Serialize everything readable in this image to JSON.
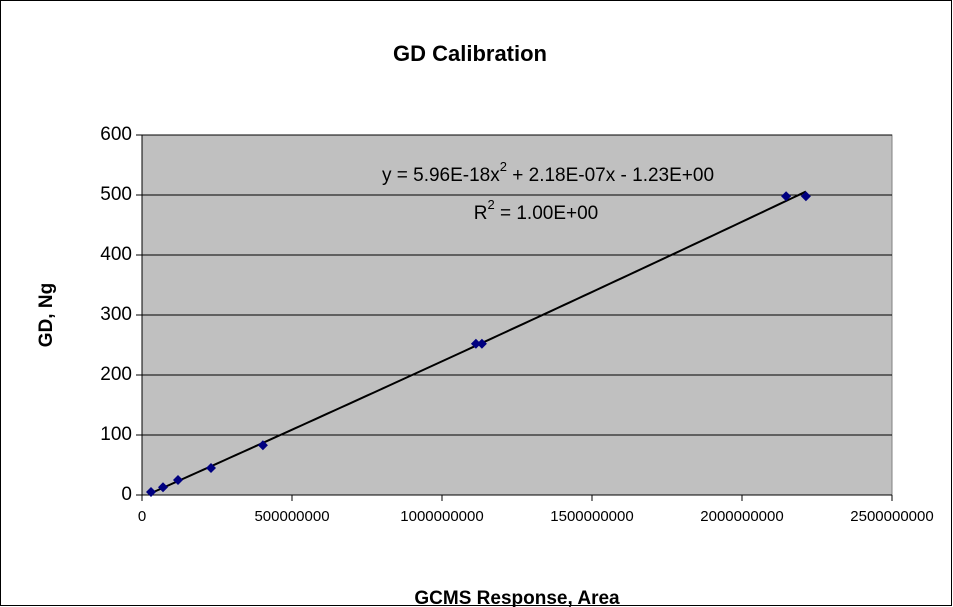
{
  "chart_data": {
    "type": "scatter",
    "title": "GD Calibration",
    "x_label": "GCMS Response, Area",
    "y_label": "GD, Ng",
    "series": [
      {
        "name": "GD",
        "color": "#000080",
        "x": [
          30000000,
          70000000,
          120000000,
          230000000,
          403000000,
          1113000000,
          1133000000,
          2147000000,
          2213000000
        ],
        "values": [
          5,
          13,
          25,
          45,
          83,
          252,
          252,
          498,
          498
        ]
      }
    ],
    "trendline": {
      "type": "polynomial",
      "order": 2,
      "color": "#000000"
    },
    "annotations": {
      "equation": [
        "y = 5.96E-18x",
        "2",
        " + 2.18E-07x - 1.23E+00"
      ],
      "r_squared": [
        "R",
        "2",
        " = 1.00E+00"
      ]
    },
    "xlim": [
      0,
      2500000000
    ],
    "xticks": [
      0,
      500000000,
      1000000000,
      1500000000,
      2000000000,
      2500000000
    ],
    "ylim": [
      0,
      600
    ],
    "yticks": [
      0,
      100,
      200,
      300,
      400,
      500,
      600
    ],
    "grid": true,
    "plot_background": "#c0c0c0"
  }
}
